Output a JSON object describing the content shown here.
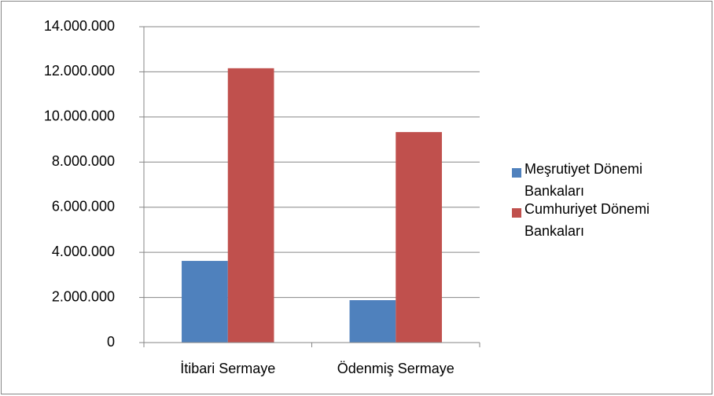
{
  "chart_data": {
    "type": "bar",
    "categories": [
      "İtibari Sermaye",
      "Ödenmiş Sermaye"
    ],
    "series": [
      {
        "name": "Meşrutiyet Dönemi Bankaları",
        "color": "#4f81bd",
        "values": [
          3620000,
          1880000
        ]
      },
      {
        "name": "Cumhuriyet Dönemi Bankaları",
        "color": "#c0504d",
        "values": [
          12160000,
          9330000
        ]
      }
    ],
    "ylim": [
      0,
      14000000
    ],
    "yticks": [
      0,
      {
        "value": 2000000,
        "label": "2.000.000"
      },
      {
        "value": 4000000,
        "label": "4.000.000"
      },
      {
        "value": 6000000,
        "label": "6.000.000"
      },
      {
        "value": 8000000,
        "label": "8.000.000"
      },
      {
        "value": 10000000,
        "label": "10.000.000"
      },
      {
        "value": 12000000,
        "label": "12.000.000"
      },
      {
        "value": 14000000,
        "label": "14.000.000"
      }
    ],
    "grid": true,
    "legend": "right"
  }
}
